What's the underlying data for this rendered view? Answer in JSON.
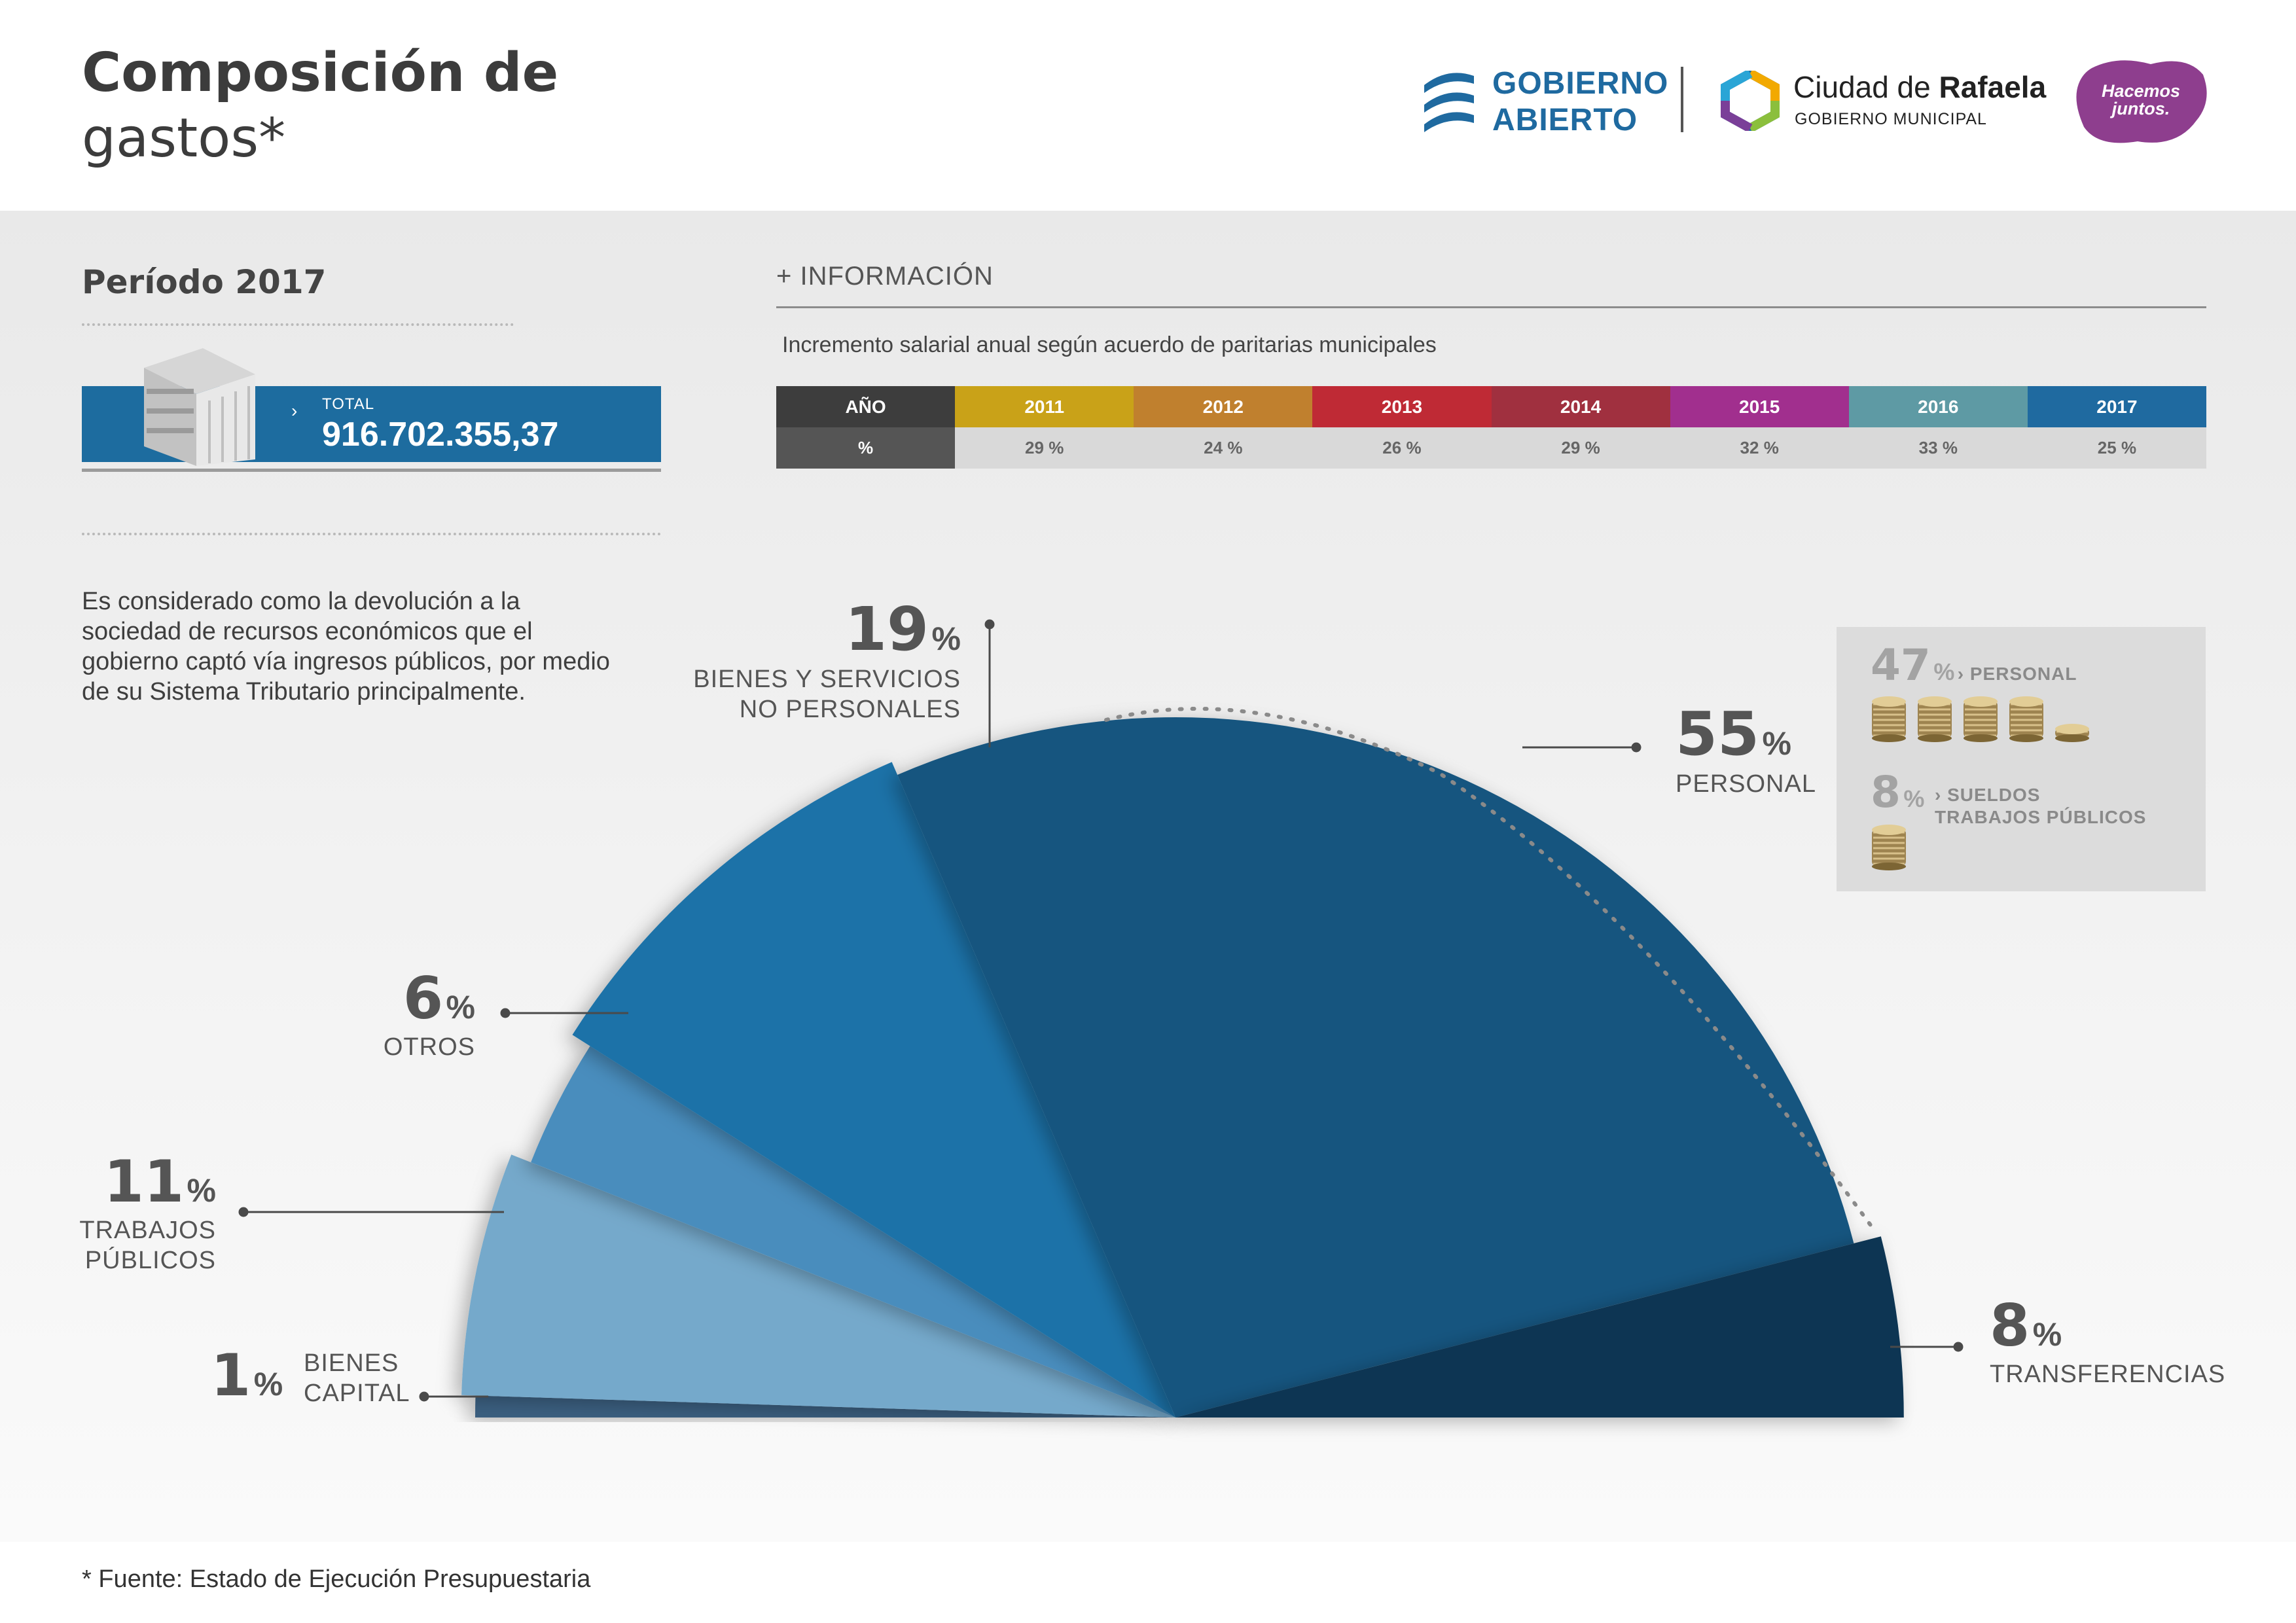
{
  "header": {
    "title_line1": "Composición de",
    "title_line2": "gastos*",
    "logos": {
      "gobierno_abierto_line1": "GOBIERNO",
      "gobierno_abierto_line2": "ABIERTO",
      "ciudad_prefix": "Ciudad de ",
      "ciudad_bold": "Rafaela",
      "ciudad_sub": "GOBIERNO MUNICIPAL",
      "hacemos_line1": "Hacemos",
      "hacemos_line2": "juntos."
    }
  },
  "period": {
    "label": "Período 2017",
    "total_arrow": "›",
    "total_label": "TOTAL",
    "total_value": "916.702.355,37",
    "description": "Es considerado como la devolución a la sociedad de recursos económicos que el gobierno captó vía ingresos públicos, por medio de su Sistema Tributario principalmente."
  },
  "info": {
    "title": "+ INFORMACIÓN",
    "subtitle": "Incremento salarial anual según acuerdo de paritarias municipales",
    "table": {
      "row_head_year": "AÑO",
      "row_head_pct": "%",
      "years": [
        "2011",
        "2012",
        "2013",
        "2014",
        "2015",
        "2016",
        "2017"
      ],
      "values": [
        "29 %",
        "24 %",
        "26 %",
        "29 %",
        "32 %",
        "33 %",
        "25 %"
      ],
      "colors": [
        "#c9a218",
        "#c0802e",
        "#bf2a35",
        "#a0303f",
        "#a12f8e",
        "#5e9aa4",
        "#1f6aa0"
      ],
      "head_color": "#3d3d3d"
    }
  },
  "chart_data": {
    "type": "pie",
    "shape": "half-pie",
    "slices": [
      {
        "label": "BIENES CAPITAL",
        "value": 1,
        "color": "#3b5f80"
      },
      {
        "label": "TRABAJOS PÚBLICOS",
        "value": 11,
        "color": "#74a9cb"
      },
      {
        "label": "OTROS",
        "value": 6,
        "color": "#4a8dbd"
      },
      {
        "label": "BIENES Y SERVICIOS NO PERSONALES",
        "value": 19,
        "color": "#1a72a8"
      },
      {
        "label": "PERSONAL",
        "value": 55,
        "color": "#14557f"
      },
      {
        "label": "TRANSFERENCIAS",
        "value": 8,
        "color": "#0c3653"
      }
    ],
    "labels": {
      "bienes_capital": {
        "num": "1",
        "sym": "%",
        "line1": "BIENES",
        "line2": "CAPITAL"
      },
      "trabajos": {
        "num": "11",
        "sym": "%",
        "line1": "TRABAJOS",
        "line2": "PÚBLICOS"
      },
      "otros": {
        "num": "6",
        "sym": "%",
        "line1": "OTROS"
      },
      "bienes_servicios": {
        "num": "19",
        "sym": "%",
        "line1": "BIENES Y SERVICIOS",
        "line2": "NO PERSONALES"
      },
      "personal": {
        "num": "55",
        "sym": "%",
        "line1": "PERSONAL"
      },
      "transferencias": {
        "num": "8",
        "sym": "%",
        "line1": "TRANSFERENCIAS"
      }
    },
    "personal_breakdown": [
      {
        "num": "47",
        "sym": "%",
        "label": "› PERSONAL",
        "coins": 4.5
      },
      {
        "num": "8",
        "sym": "%",
        "label_line1": "› SUELDOS",
        "label_line2": "TRABAJOS PÚBLICOS",
        "coins": 1
      }
    ]
  },
  "footer": {
    "note": "* Fuente: Estado de Ejecución Presupuestaria"
  }
}
